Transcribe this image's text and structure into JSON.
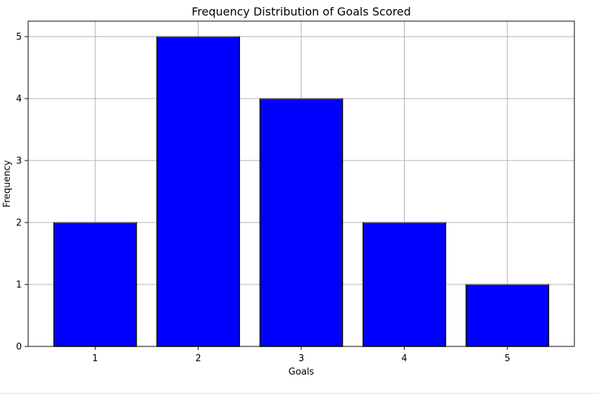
{
  "chart_data": {
    "type": "bar",
    "title": "Frequency Distribution of Goals Scored",
    "xlabel": "Goals",
    "ylabel": "Frequency",
    "categories": [
      "1",
      "2",
      "3",
      "4",
      "5"
    ],
    "values": [
      2,
      5,
      4,
      2,
      1
    ],
    "xlim": [
      0.35,
      5.65
    ],
    "ylim": [
      0,
      5.25
    ],
    "yticks": [
      "0",
      "1",
      "2",
      "3",
      "4",
      "5"
    ],
    "grid": true,
    "bar_color": "#0000ff",
    "edge_color": "#000000"
  }
}
